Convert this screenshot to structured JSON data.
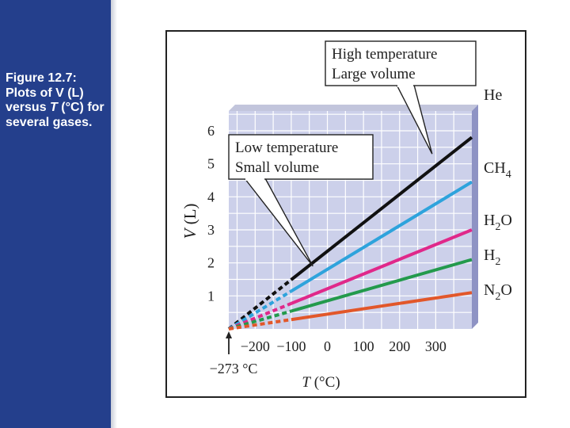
{
  "slide": {
    "caption_parts": [
      "Figure 12.7: Plots of V (L) versus ",
      "T",
      " (°C) for several gases."
    ]
  },
  "chart_data": {
    "type": "line",
    "xlabel_var": "T",
    "xlabel_unit": " (°C)",
    "ylabel_var": "V",
    "ylabel_unit": " (L)",
    "xlim": [
      -273,
      400
    ],
    "ylim": [
      0,
      6.6
    ],
    "xticks": [
      -200,
      -100,
      0,
      100,
      200,
      300
    ],
    "xtick_labels": [
      "−200",
      "−100",
      "0",
      "100",
      "200",
      "300"
    ],
    "yticks": [
      1,
      2,
      3,
      4,
      5,
      6
    ],
    "extrapolated_below": -100,
    "grid": true,
    "intercept_label": "−273 °C",
    "series": [
      {
        "label": "He",
        "color": "#111111",
        "points": [
          [
            -273,
            0
          ],
          [
            400,
            5.8
          ]
        ]
      },
      {
        "label": "CH4",
        "label_main": "CH",
        "label_sub": "4",
        "color": "#2ea3dc",
        "points": [
          [
            -273,
            0
          ],
          [
            400,
            4.45
          ]
        ]
      },
      {
        "label": "H2O",
        "label_main": "H",
        "label_sub": "2",
        "label_tail": "O",
        "color": "#e0288a",
        "points": [
          [
            -273,
            0
          ],
          [
            400,
            3.0
          ]
        ]
      },
      {
        "label": "H2",
        "label_main": "H",
        "label_sub": "2",
        "color": "#239a4c",
        "points": [
          [
            -273,
            0
          ],
          [
            400,
            2.1
          ]
        ]
      },
      {
        "label": "N2O",
        "label_main": "N",
        "label_sub": "2",
        "label_tail": "O",
        "color": "#e2572a",
        "points": [
          [
            -273,
            0
          ],
          [
            400,
            1.1
          ]
        ]
      }
    ],
    "annotations": [
      {
        "lines": [
          "High temperature",
          "Large volume"
        ],
        "point_to": [
          290,
          5.3
        ]
      },
      {
        "lines": [
          "Low temperature",
          "Small volume"
        ],
        "point_to": [
          -40,
          1.9
        ]
      }
    ]
  }
}
